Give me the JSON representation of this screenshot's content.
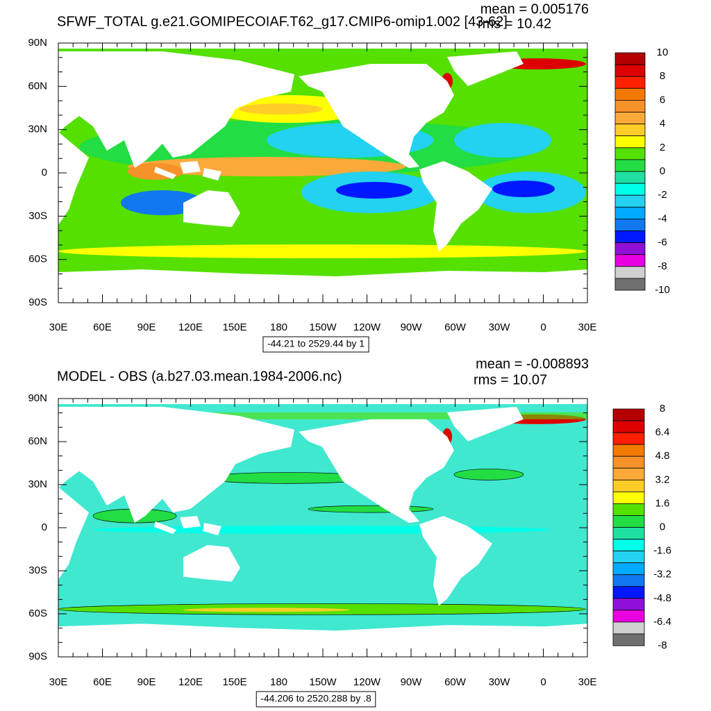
{
  "panels": [
    {
      "title": "SFWF_TOTAL g.e21.GOMIPECOIAF.T62_g17.CMIP6-omip1.002 [43-62]",
      "mean": "mean = 0.005176",
      "rms": "rms = 10.42",
      "lat_labels": [
        "90N",
        "60N",
        "30N",
        "0",
        "30S",
        "60S",
        "90S"
      ],
      "lon_labels": [
        "30E",
        "60E",
        "90E",
        "120E",
        "150E",
        "180",
        "150W",
        "120W",
        "90W",
        "60W",
        "30W",
        "0",
        "30E"
      ],
      "range": "-44.21 to 2529.44 by 1",
      "colorbar": {
        "labels": [
          "10",
          "8",
          "6",
          "4",
          "2",
          "0",
          "-2",
          "-4",
          "-6",
          "-8",
          "-10"
        ],
        "colors": [
          "#b40000",
          "#dd0000",
          "#ff2000",
          "#f27a00",
          "#f6922a",
          "#fbaa3a",
          "#ffcd28",
          "#ffff00",
          "#55e000",
          "#22dd44",
          "#1ee0a0",
          "#00ffe8",
          "#22d2f0",
          "#00aaff",
          "#1178f0",
          "#0018ff",
          "#9010d8",
          "#e800e0",
          "#d0d0d0",
          "#707070"
        ]
      }
    },
    {
      "title": "MODEL - OBS (a.b27.03.mean.1984-2006.nc)",
      "mean": "mean = -0.008893",
      "rms": "rms = 10.07",
      "lat_labels": [
        "90N",
        "60N",
        "30N",
        "0",
        "30S",
        "60S",
        "90S"
      ],
      "lon_labels": [
        "30E",
        "60E",
        "90E",
        "120E",
        "150E",
        "180",
        "150W",
        "120W",
        "90W",
        "60W",
        "30W",
        "0",
        "30E"
      ],
      "range": "-44.206 to 2520.288 by .8",
      "colorbar": {
        "labels": [
          "8",
          "6.4",
          "4.8",
          "3.2",
          "1.6",
          "0",
          "-1.6",
          "-3.2",
          "-4.8",
          "-6.4",
          "-8"
        ],
        "colors": [
          "#b40000",
          "#dd0000",
          "#ff2000",
          "#f27a00",
          "#f6922a",
          "#fbaa3a",
          "#ffcd28",
          "#ffff00",
          "#55e000",
          "#22dd44",
          "#1ee0a0",
          "#00ffe8",
          "#22d2f0",
          "#00aaff",
          "#1178f0",
          "#0018ff",
          "#9010d8",
          "#e800e0",
          "#d0d0d0",
          "#707070"
        ]
      }
    }
  ]
}
